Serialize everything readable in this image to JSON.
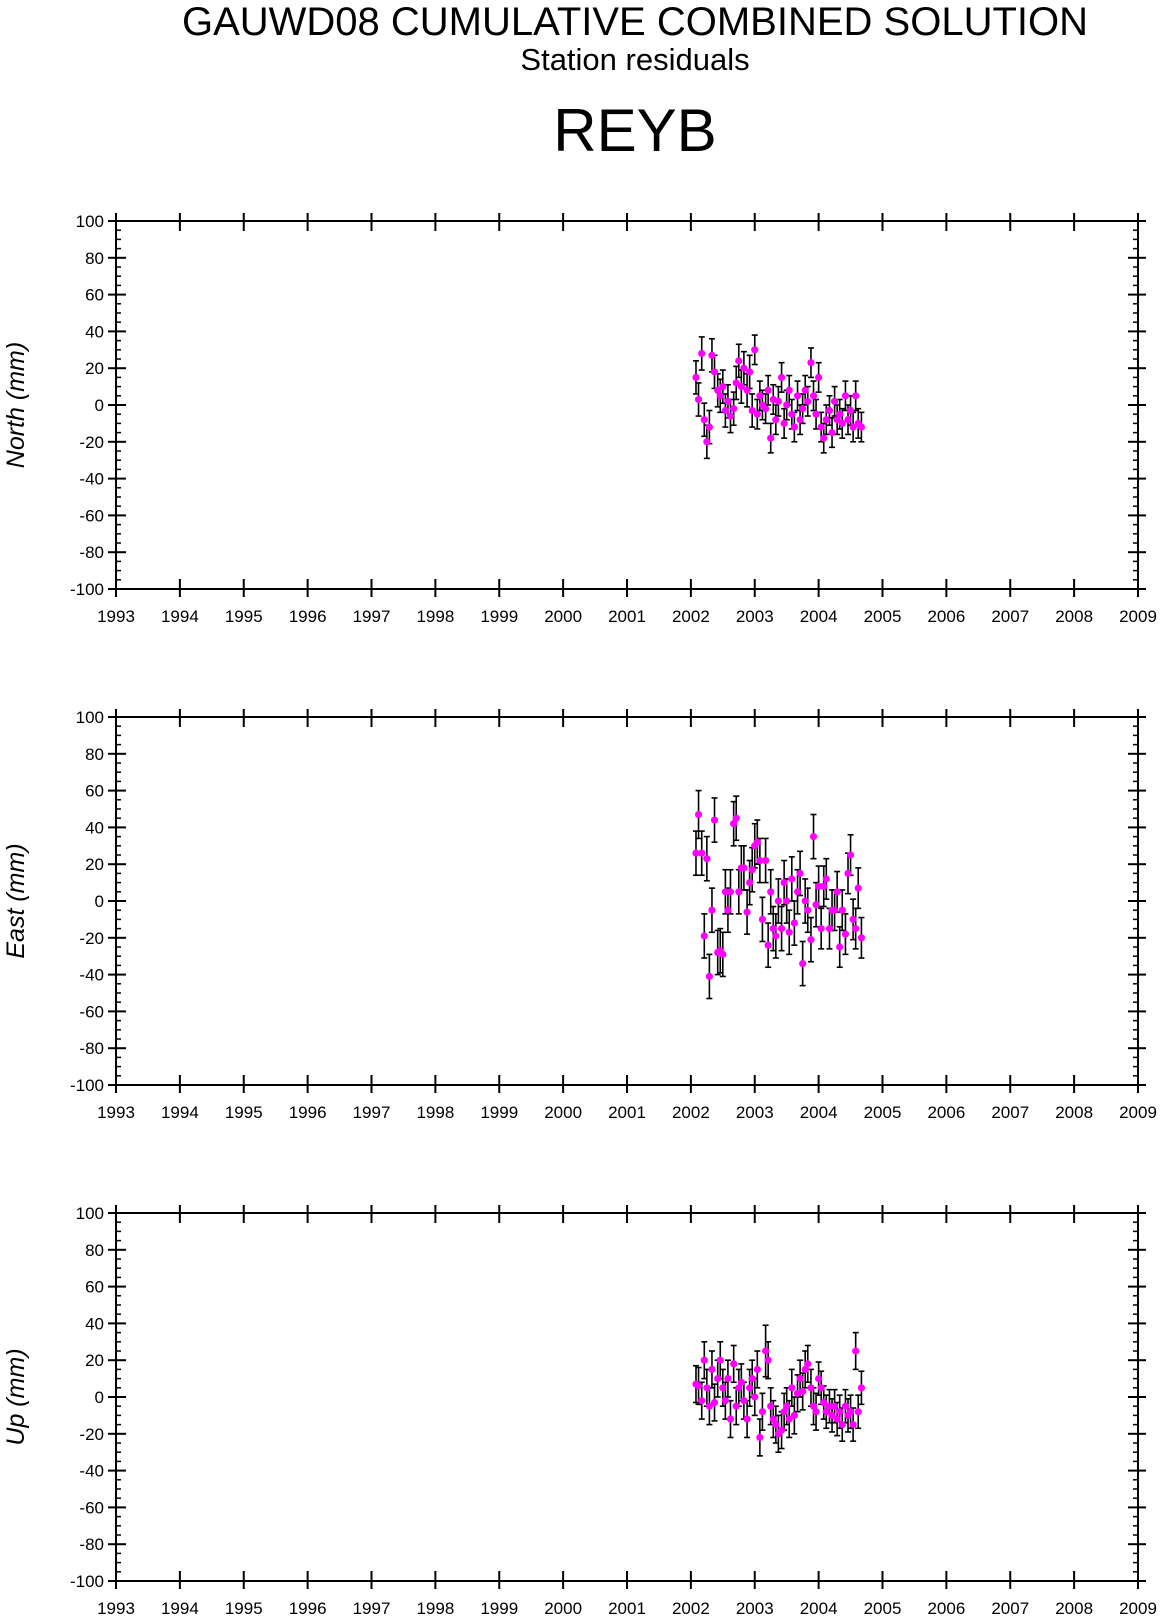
{
  "header": {
    "title": "GAUWD08 CUMULATIVE COMBINED SOLUTION",
    "subtitle": "Station residuals",
    "station": "REYB"
  },
  "colors": {
    "point": "#ff00ff",
    "errorbar": "#000000",
    "axis": "#000000"
  },
  "chart_data": [
    {
      "type": "scatter",
      "ylabel": "North (mm)",
      "xlim": [
        1993,
        2009
      ],
      "ylim": [
        -100,
        100
      ],
      "x_ticks": [
        "1993",
        "1994",
        "1995",
        "1996",
        "1997",
        "1998",
        "1999",
        "2000",
        "2001",
        "2002",
        "2003",
        "2004",
        "2005",
        "2006",
        "2007",
        "2008",
        "2009"
      ],
      "y_ticks": [
        "100",
        "80",
        "60",
        "40",
        "20",
        "0",
        "-20",
        "-40",
        "-60",
        "-80",
        "-100"
      ],
      "series": [
        {
          "x": [
            2002.08,
            2002.12,
            2002.17,
            2002.21,
            2002.25,
            2002.29,
            2002.33,
            2002.37,
            2002.42,
            2002.46,
            2002.5,
            2002.54,
            2002.58,
            2002.62,
            2002.67,
            2002.71,
            2002.75,
            2002.79,
            2002.83,
            2002.88,
            2002.92,
            2002.96,
            2003.0,
            2003.04,
            2003.08,
            2003.12,
            2003.17,
            2003.21,
            2003.25,
            2003.29,
            2003.33,
            2003.37,
            2003.42,
            2003.46,
            2003.5,
            2003.54,
            2003.58,
            2003.62,
            2003.67,
            2003.71,
            2003.75,
            2003.79,
            2003.83,
            2003.88,
            2003.92,
            2003.96,
            2004.0,
            2004.04,
            2004.08,
            2004.12,
            2004.17,
            2004.21,
            2004.25,
            2004.29,
            2004.33,
            2004.37,
            2004.42,
            2004.46,
            2004.5,
            2004.54,
            2004.58,
            2004.62,
            2004.67
          ],
          "y": [
            15,
            3,
            28,
            -8,
            -20,
            -12,
            27,
            18,
            8,
            5,
            10,
            -3,
            2,
            -6,
            -2,
            12,
            24,
            10,
            20,
            8,
            18,
            -3,
            30,
            -5,
            5,
            0,
            -2,
            8,
            -18,
            3,
            -8,
            2,
            15,
            -10,
            0,
            8,
            -5,
            -12,
            5,
            -8,
            -2,
            8,
            2,
            23,
            5,
            -5,
            15,
            -12,
            -18,
            -8,
            -3,
            -15,
            2,
            -8,
            -5,
            -10,
            5,
            -8,
            -3,
            -12,
            5,
            -10,
            -12
          ],
          "err": [
            9,
            9,
            9,
            9,
            9,
            9,
            9,
            9,
            9,
            9,
            9,
            9,
            9,
            9,
            9,
            9,
            9,
            9,
            9,
            9,
            9,
            9,
            8,
            8,
            8,
            8,
            8,
            8,
            8,
            8,
            8,
            8,
            8,
            8,
            8,
            8,
            8,
            8,
            8,
            8,
            8,
            8,
            8,
            8,
            8,
            8,
            8,
            8,
            8,
            8,
            8,
            8,
            8,
            8,
            8,
            8,
            8,
            8,
            8,
            8,
            8,
            8,
            8
          ]
        }
      ]
    },
    {
      "type": "scatter",
      "ylabel": "East (mm)",
      "xlim": [
        1993,
        2009
      ],
      "ylim": [
        -100,
        100
      ],
      "x_ticks": [
        "1993",
        "1994",
        "1995",
        "1996",
        "1997",
        "1998",
        "1999",
        "2000",
        "2001",
        "2002",
        "2003",
        "2004",
        "2005",
        "2006",
        "2007",
        "2008",
        "2009"
      ],
      "y_ticks": [
        "100",
        "80",
        "60",
        "40",
        "20",
        "0",
        "-20",
        "-40",
        "-60",
        "-80",
        "-100"
      ],
      "series": [
        {
          "x": [
            2002.08,
            2002.12,
            2002.17,
            2002.21,
            2002.25,
            2002.29,
            2002.33,
            2002.37,
            2002.42,
            2002.46,
            2002.5,
            2002.54,
            2002.58,
            2002.62,
            2002.67,
            2002.71,
            2002.75,
            2002.79,
            2002.83,
            2002.88,
            2002.92,
            2002.96,
            2003.0,
            2003.04,
            2003.08,
            2003.12,
            2003.17,
            2003.21,
            2003.25,
            2003.29,
            2003.33,
            2003.37,
            2003.42,
            2003.46,
            2003.5,
            2003.54,
            2003.58,
            2003.62,
            2003.67,
            2003.71,
            2003.75,
            2003.79,
            2003.83,
            2003.88,
            2003.92,
            2003.96,
            2004.0,
            2004.04,
            2004.08,
            2004.12,
            2004.17,
            2004.21,
            2004.25,
            2004.29,
            2004.33,
            2004.37,
            2004.42,
            2004.46,
            2004.5,
            2004.54,
            2004.58,
            2004.62,
            2004.67
          ],
          "y": [
            26,
            47,
            26,
            -19,
            23,
            -41,
            -5,
            44,
            -28,
            -27,
            -29,
            5,
            -5,
            5,
            42,
            45,
            5,
            18,
            18,
            -6,
            10,
            17,
            30,
            32,
            22,
            -10,
            22,
            -24,
            5,
            -15,
            -19,
            0,
            -15,
            10,
            0,
            -17,
            12,
            -12,
            5,
            15,
            -34,
            0,
            -5,
            -21,
            35,
            -2,
            8,
            -15,
            8,
            12,
            -15,
            -5,
            -5,
            5,
            -25,
            -5,
            -18,
            15,
            25,
            -10,
            -15,
            7,
            -20
          ],
          "err": [
            12,
            13,
            12,
            12,
            12,
            12,
            12,
            12,
            12,
            12,
            12,
            12,
            12,
            12,
            12,
            12,
            12,
            12,
            12,
            12,
            12,
            12,
            12,
            12,
            12,
            12,
            12,
            12,
            12,
            12,
            12,
            12,
            12,
            12,
            12,
            12,
            12,
            12,
            12,
            12,
            12,
            12,
            12,
            12,
            12,
            12,
            11,
            11,
            11,
            11,
            11,
            11,
            11,
            11,
            11,
            11,
            11,
            11,
            11,
            11,
            11,
            11,
            11
          ]
        }
      ]
    },
    {
      "type": "scatter",
      "ylabel": "Up (mm)",
      "xlim": [
        1993,
        2009
      ],
      "ylim": [
        -100,
        100
      ],
      "x_ticks": [
        "1993",
        "1994",
        "1995",
        "1996",
        "1997",
        "1998",
        "1999",
        "2000",
        "2001",
        "2002",
        "2003",
        "2004",
        "2005",
        "2006",
        "2007",
        "2008",
        "2009"
      ],
      "y_ticks": [
        "100",
        "80",
        "60",
        "40",
        "20",
        "0",
        "-20",
        "-40",
        "-60",
        "-80",
        "-100"
      ],
      "series": [
        {
          "x": [
            2002.08,
            2002.12,
            2002.17,
            2002.21,
            2002.25,
            2002.29,
            2002.33,
            2002.37,
            2002.42,
            2002.46,
            2002.5,
            2002.54,
            2002.58,
            2002.62,
            2002.67,
            2002.71,
            2002.75,
            2002.79,
            2002.83,
            2002.88,
            2002.92,
            2002.96,
            2003.0,
            2003.04,
            2003.08,
            2003.12,
            2003.17,
            2003.21,
            2003.25,
            2003.29,
            2003.33,
            2003.37,
            2003.42,
            2003.46,
            2003.5,
            2003.54,
            2003.58,
            2003.62,
            2003.67,
            2003.71,
            2003.75,
            2003.79,
            2003.83,
            2003.88,
            2003.92,
            2003.96,
            2004.0,
            2004.04,
            2004.08,
            2004.12,
            2004.17,
            2004.21,
            2004.25,
            2004.29,
            2004.33,
            2004.37,
            2004.42,
            2004.46,
            2004.5,
            2004.54,
            2004.58,
            2004.62,
            2004.67
          ],
          "y": [
            7,
            6,
            -2,
            20,
            5,
            -5,
            15,
            -3,
            10,
            20,
            5,
            -2,
            10,
            -12,
            18,
            -5,
            5,
            8,
            -2,
            -12,
            5,
            10,
            0,
            15,
            -22,
            -8,
            25,
            20,
            -5,
            -12,
            -15,
            -20,
            -18,
            -8,
            -5,
            -12,
            5,
            -10,
            2,
            10,
            3,
            15,
            18,
            5,
            -5,
            -8,
            10,
            5,
            -3,
            -8,
            -5,
            -10,
            -5,
            -12,
            -8,
            -15,
            -5,
            -10,
            -8,
            -15,
            25,
            -8,
            5
          ],
          "err": [
            10,
            10,
            10,
            10,
            10,
            10,
            10,
            10,
            10,
            10,
            10,
            10,
            10,
            10,
            10,
            10,
            10,
            10,
            10,
            10,
            10,
            10,
            10,
            10,
            10,
            10,
            14,
            10,
            10,
            10,
            10,
            10,
            10,
            10,
            10,
            10,
            10,
            10,
            10,
            10,
            10,
            10,
            10,
            10,
            10,
            10,
            9,
            9,
            9,
            9,
            9,
            9,
            9,
            9,
            9,
            9,
            9,
            9,
            9,
            9,
            10,
            9,
            9
          ]
        }
      ]
    }
  ]
}
